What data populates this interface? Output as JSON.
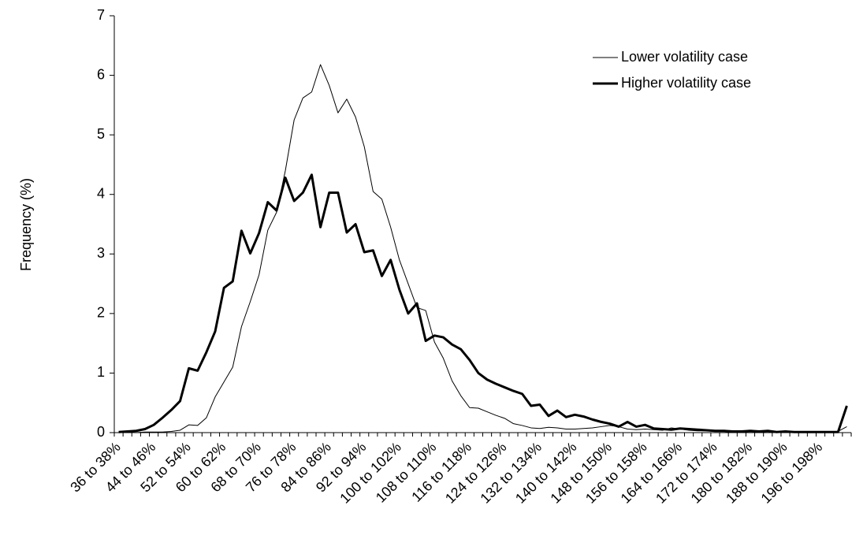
{
  "chart_data": {
    "type": "line",
    "y_label": "Frequency (%)",
    "categories": [
      "36 to 38%",
      null,
      null,
      null,
      "44 to 46%",
      null,
      null,
      null,
      "52 to 54%",
      null,
      null,
      null,
      "60 to 62%",
      null,
      null,
      null,
      "68 to 70%",
      null,
      null,
      null,
      "76 to 78%",
      null,
      null,
      null,
      "84 to 86%",
      null,
      null,
      null,
      "92 to 94%",
      null,
      null,
      null,
      "100 to 102%",
      null,
      null,
      null,
      "108 to 110%",
      null,
      null,
      null,
      "116 to 118%",
      null,
      null,
      null,
      "124 to 126%",
      null,
      null,
      null,
      "132 to 134%",
      null,
      null,
      null,
      "140 to 142%",
      null,
      null,
      null,
      "148 to 150%",
      null,
      null,
      null,
      "156 to 158%",
      null,
      null,
      null,
      "164 to 166%",
      null,
      null,
      null,
      "172 to 174%",
      null,
      null,
      null,
      "180 to 182%",
      null,
      null,
      null,
      "188 to 190%",
      null,
      null,
      null,
      "196 to 198%",
      null,
      null,
      null
    ],
    "series": [
      {
        "name": "Lower volatility case",
        "color": "#000000",
        "width": 1,
        "values": [
          0,
          0,
          0,
          0.01,
          0.01,
          0.01,
          0.02,
          0.04,
          0.13,
          0.12,
          0.25,
          0.6,
          0.85,
          1.1,
          1.78,
          2.2,
          2.65,
          3.4,
          3.7,
          4.4,
          5.25,
          5.62,
          5.72,
          6.18,
          5.83,
          5.37,
          5.6,
          5.3,
          4.8,
          4.05,
          3.92,
          3.45,
          2.9,
          2.5,
          2.1,
          2.05,
          1.52,
          1.25,
          0.87,
          0.62,
          0.42,
          0.41,
          0.35,
          0.29,
          0.24,
          0.15,
          0.12,
          0.08,
          0.07,
          0.09,
          0.08,
          0.06,
          0.06,
          0.07,
          0.08,
          0.1,
          0.12,
          0.1,
          0.06,
          0.05,
          0.06,
          0.05,
          0.04,
          0.08,
          0.06,
          0.04,
          0.03,
          0.03,
          0.02,
          0.03,
          0.03,
          0.02,
          0.02,
          0.03,
          0.02,
          0.01,
          0.01,
          0.01,
          0.01,
          0.01,
          0.01,
          0.01,
          0.02,
          0.1
        ]
      },
      {
        "name": "Higher volatility case",
        "color": "#000000",
        "width": 3,
        "values": [
          0.01,
          0.02,
          0.03,
          0.06,
          0.13,
          0.25,
          0.38,
          0.53,
          1.08,
          1.04,
          1.35,
          1.7,
          2.43,
          2.54,
          3.39,
          3.01,
          3.35,
          3.87,
          3.73,
          4.28,
          3.89,
          4.03,
          4.33,
          3.45,
          4.03,
          4.03,
          3.36,
          3.5,
          3.03,
          3.06,
          2.63,
          2.9,
          2.4,
          2.0,
          2.17,
          1.54,
          1.63,
          1.6,
          1.48,
          1.4,
          1.22,
          1.0,
          0.89,
          0.82,
          0.76,
          0.7,
          0.65,
          0.45,
          0.47,
          0.28,
          0.37,
          0.26,
          0.3,
          0.27,
          0.22,
          0.18,
          0.15,
          0.1,
          0.18,
          0.1,
          0.13,
          0.07,
          0.06,
          0.05,
          0.07,
          0.06,
          0.05,
          0.04,
          0.03,
          0.03,
          0.02,
          0.02,
          0.03,
          0.02,
          0.03,
          0.01,
          0.02,
          0.01,
          0.01,
          0.01,
          0.01,
          0.01,
          0.01,
          0.45
        ]
      }
    ],
    "ylim": [
      0,
      7
    ],
    "yticks": [
      0,
      1,
      2,
      3,
      4,
      5,
      6,
      7
    ],
    "grid": false,
    "legend": "top-right"
  }
}
